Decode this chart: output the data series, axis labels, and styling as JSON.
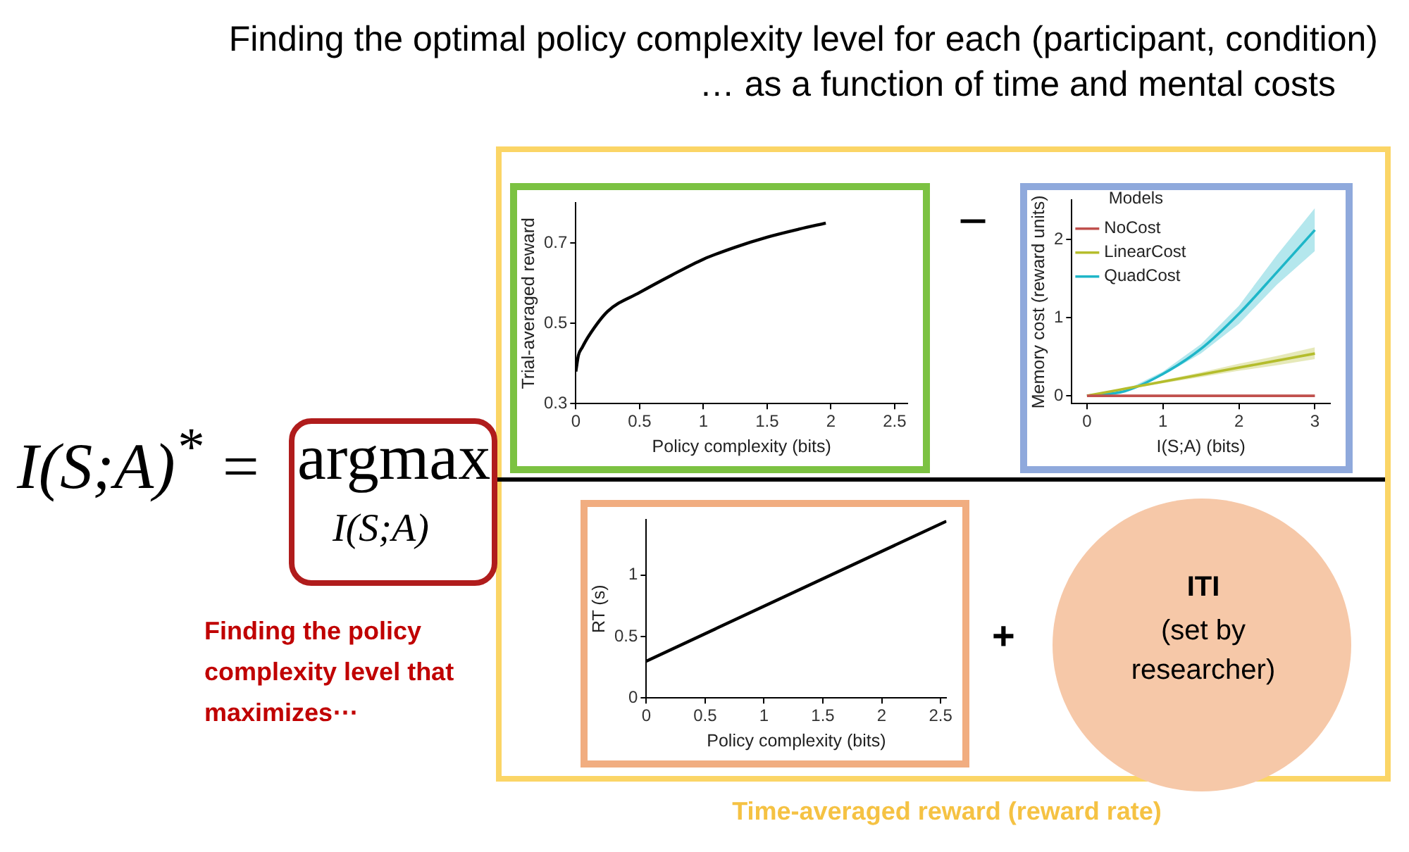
{
  "chart_data": [
    {
      "type": "other",
      "title": "Finding the optimal policy complexity level for each (participant, condition)",
      "subtitle": "… as a function of time and mental costs",
      "annotations": [
        "I(S;A)$^{*}$ =",
        "argmax",
        "I(S;A)",
        "Finding the policy complexity level that maximizes⋯",
        "−",
        "+",
        "ITI",
        "(set by researcher)",
        "Time-averaged reward (reward rate)"
      ]
    },
    {
      "type": "line",
      "xlabel": "Policy complexity (bits)",
      "ylabel": "Trial-averaged reward",
      "xlim": [
        0,
        2.6
      ],
      "xticks": [
        0,
        0.5,
        1,
        1.5,
        2,
        2.5
      ],
      "ylim": [
        0.3,
        0.8
      ],
      "yticks": [
        0.3,
        0.5,
        0.7
      ],
      "marker": "none",
      "grid": false,
      "legend": false,
      "series": [
        {
          "color": "#000000",
          "x": [
            0,
            0.02,
            0.05,
            0.1,
            0.25,
            0.5,
            0.75,
            1,
            1.25,
            1.5,
            1.75,
            1.96
          ],
          "values": [
            0.38,
            0.42,
            0.44,
            0.468,
            0.53,
            0.577,
            0.62,
            0.66,
            0.69,
            0.715,
            0.735,
            0.75
          ]
        }
      ]
    },
    {
      "type": "line",
      "xlabel": "I(S;A) (bits)",
      "ylabel": "Memory cost (reward units)",
      "xlim": [
        -0.2,
        3.2
      ],
      "xticks": [
        0,
        1,
        2,
        3
      ],
      "ylim": [
        -0.1,
        2.5
      ],
      "yticks": [
        0,
        1,
        2
      ],
      "marker": "none",
      "grid": false,
      "legend": "top left",
      "legend_title": "Models",
      "x": [
        0,
        0.5,
        1,
        1.5,
        2,
        2.5,
        3
      ],
      "series": [
        {
          "name": "NoCost",
          "color": "#c0504d",
          "values": [
            0,
            0,
            0,
            0,
            0,
            0,
            0
          ]
        },
        {
          "name": "LinearCost",
          "color": "#b5bd2c",
          "values": [
            0,
            0.09,
            0.18,
            0.27,
            0.36,
            0.45,
            0.54
          ],
          "lower": [
            0,
            0.08,
            0.16,
            0.24,
            0.32,
            0.39,
            0.47
          ],
          "upper": [
            0,
            0.1,
            0.2,
            0.3,
            0.41,
            0.51,
            0.62
          ]
        },
        {
          "name": "QuadCost",
          "color": "#1fb6c8",
          "values": [
            0,
            0.06,
            0.28,
            0.6,
            1.05,
            1.58,
            2.12
          ],
          "lower": [
            0,
            0.05,
            0.26,
            0.54,
            0.92,
            1.42,
            1.85
          ],
          "upper": [
            0,
            0.07,
            0.31,
            0.66,
            1.15,
            1.8,
            2.4
          ]
        }
      ]
    },
    {
      "type": "line",
      "xlabel": "Policy complexity (bits)",
      "ylabel": "RT (s)",
      "xlim": [
        0,
        2.55
      ],
      "xticks": [
        0,
        0.5,
        1,
        1.5,
        2,
        2.5
      ],
      "ylim": [
        0,
        1.45
      ],
      "yticks": [
        0,
        0.5,
        1
      ],
      "marker": "none",
      "grid": false,
      "legend": false,
      "series": [
        {
          "color": "#000000",
          "x": [
            0,
            2.55
          ],
          "values": [
            0.3,
            1.44
          ]
        }
      ]
    }
  ]
}
